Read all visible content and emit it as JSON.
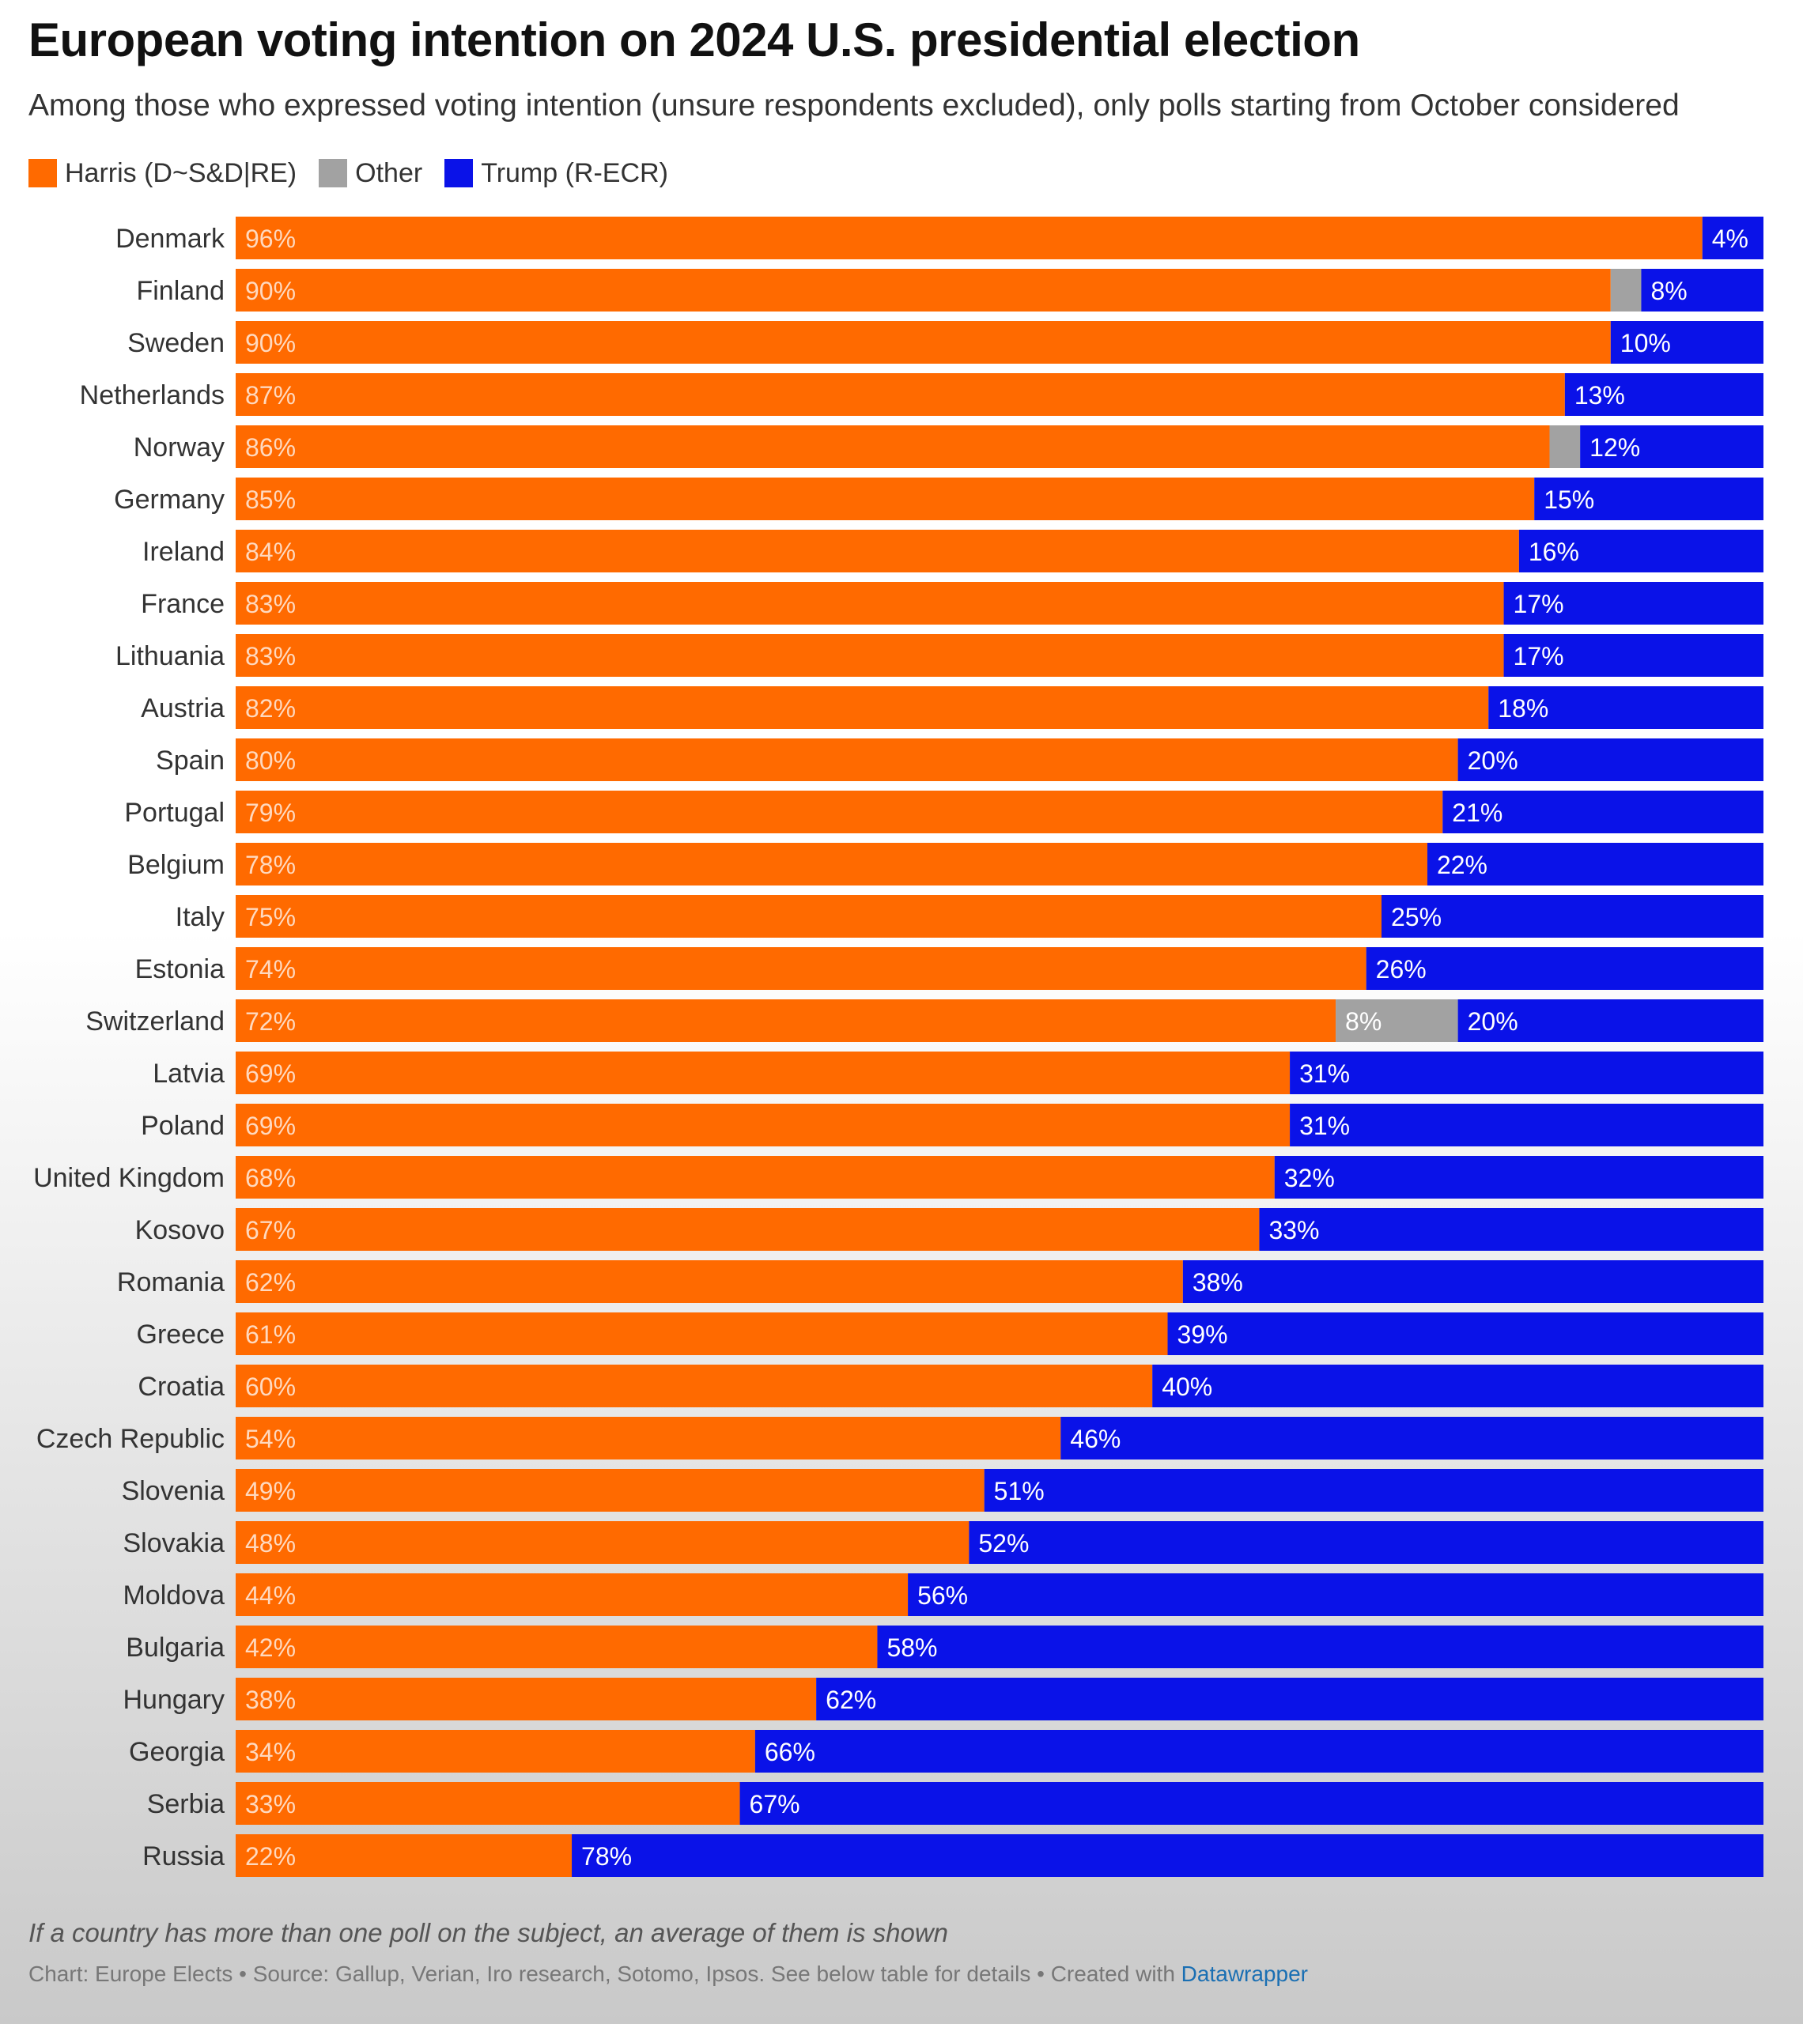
{
  "title": "European voting intention on 2024 U.S. presidential election",
  "subtitle": "Among those who expressed voting intention (unsure respondents excluded), only polls starting from October considered",
  "legend": [
    {
      "label": "Harris (D~S&D|RE)",
      "color": "#ff6a00"
    },
    {
      "label": "Other",
      "color": "#a2a2a2"
    },
    {
      "label": "Trump (R-ECR)",
      "color": "#0a12e8"
    }
  ],
  "footnote": "If a country has more than one poll on the subject, an average of them is shown",
  "credits": {
    "text": "Chart: Europe Elects • Source: Gallup, Verian, Iro research, Sotomo, Ipsos. See below table for details • Created with ",
    "link": "Datawrapper"
  },
  "chart_data": {
    "type": "bar",
    "orientation": "horizontal",
    "stacked": true,
    "xlim": [
      0,
      100
    ],
    "categories": [
      "Denmark",
      "Finland",
      "Sweden",
      "Netherlands",
      "Norway",
      "Germany",
      "Ireland",
      "France",
      "Lithuania",
      "Austria",
      "Spain",
      "Portugal",
      "Belgium",
      "Italy",
      "Estonia",
      "Switzerland",
      "Latvia",
      "Poland",
      "United Kingdom",
      "Kosovo",
      "Romania",
      "Greece",
      "Croatia",
      "Czech Republic",
      "Slovenia",
      "Slovakia",
      "Moldova",
      "Bulgaria",
      "Hungary",
      "Georgia",
      "Serbia",
      "Russia"
    ],
    "series": [
      {
        "name": "Harris (D~S&D|RE)",
        "color": "#ff6a00",
        "values": [
          96,
          90,
          90,
          87,
          86,
          85,
          84,
          83,
          83,
          82,
          80,
          79,
          78,
          75,
          74,
          72,
          69,
          69,
          68,
          67,
          62,
          61,
          60,
          54,
          49,
          48,
          44,
          42,
          38,
          34,
          33,
          22
        ]
      },
      {
        "name": "Other",
        "color": "#a2a2a2",
        "values": [
          0,
          2,
          0,
          0,
          2,
          0,
          0,
          0,
          0,
          0,
          0,
          0,
          0,
          0,
          0,
          8,
          0,
          0,
          0,
          0,
          0,
          0,
          0,
          0,
          0,
          0,
          0,
          0,
          0,
          0,
          0,
          0
        ]
      },
      {
        "name": "Trump (R-ECR)",
        "color": "#0a12e8",
        "values": [
          4,
          8,
          10,
          13,
          12,
          15,
          16,
          17,
          17,
          18,
          20,
          21,
          22,
          25,
          26,
          20,
          31,
          31,
          32,
          33,
          38,
          39,
          40,
          46,
          51,
          52,
          56,
          58,
          62,
          66,
          67,
          78
        ]
      }
    ],
    "data_labels": {
      "Harris (D~S&D|RE)": [
        "96%",
        "90%",
        "90%",
        "87%",
        "86%",
        "85%",
        "84%",
        "83%",
        "83%",
        "82%",
        "80%",
        "79%",
        "78%",
        "75%",
        "74%",
        "72%",
        "69%",
        "69%",
        "68%",
        "67%",
        "62%",
        "61%",
        "60%",
        "54%",
        "49%",
        "48%",
        "44%",
        "42%",
        "38%",
        "34%",
        "33%",
        "22%"
      ],
      "Other": [
        "",
        "",
        "",
        "",
        "",
        "",
        "",
        "",
        "",
        "",
        "",
        "",
        "",
        "",
        "",
        "8%",
        "",
        "",
        "",
        "",
        "",
        "",
        "",
        "",
        "",
        "",
        "",
        "",
        "",
        "",
        "",
        ""
      ],
      "Trump (R-ECR)": [
        "4%",
        "8%",
        "10%",
        "13%",
        "12%",
        "15%",
        "16%",
        "17%",
        "17%",
        "18%",
        "20%",
        "21%",
        "22%",
        "25%",
        "26%",
        "20%",
        "31%",
        "31%",
        "32%",
        "33%",
        "38%",
        "39%",
        "40%",
        "46%",
        "51%",
        "52%",
        "56%",
        "58%",
        "62%",
        "66%",
        "67%",
        "78%"
      ]
    }
  }
}
